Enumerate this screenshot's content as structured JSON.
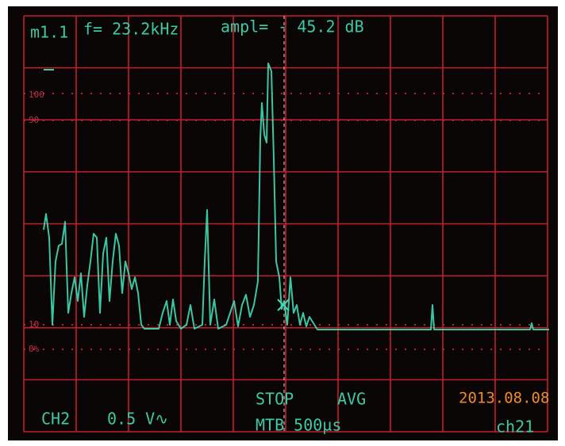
{
  "readout": {
    "marker": "m1.1",
    "frequency": "f= 23.2kHz",
    "amplitude": "ampl= - 45.2 dB"
  },
  "scale_labels": [
    "100",
    "90",
    "10",
    "0%"
  ],
  "status": {
    "state": "STOP",
    "mode": "AVG",
    "timebase": "MTB 500µs"
  },
  "channel": {
    "name": "CH2",
    "scale": "0.5 V∿"
  },
  "date": "2013.08.08",
  "screen_label": "ch21"
}
